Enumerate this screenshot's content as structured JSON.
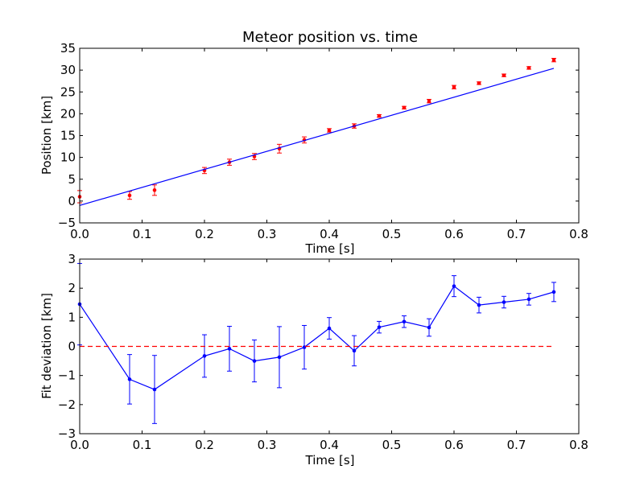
{
  "chart_data": [
    {
      "type": "scatter",
      "title": "Meteor position vs. time",
      "xlabel": "Time [s]",
      "ylabel": "Position [km]",
      "xlim": [
        0.0,
        0.8
      ],
      "ylim": [
        -5,
        35
      ],
      "x_ticks": [
        "0.0",
        "0.1",
        "0.2",
        "0.3",
        "0.4",
        "0.5",
        "0.6",
        "0.7",
        "0.8"
      ],
      "y_ticks": [
        "−5",
        "0",
        "5",
        "10",
        "15",
        "20",
        "25",
        "30",
        "35"
      ],
      "grid": false,
      "series": [
        {
          "kind": "errorbar-points",
          "color": "#ff0000",
          "x": [
            0.0,
            0.08,
            0.12,
            0.2,
            0.24,
            0.28,
            0.32,
            0.36,
            0.4,
            0.44,
            0.48,
            0.52,
            0.56,
            0.6,
            0.64,
            0.68,
            0.72,
            0.76
          ],
          "y": [
            1.0,
            1.3,
            2.5,
            7.0,
            8.9,
            10.2,
            12.0,
            14.0,
            16.2,
            17.2,
            19.5,
            21.4,
            22.9,
            26.1,
            27.0,
            28.8,
            30.5,
            32.3
          ],
          "yerr": [
            1.4,
            0.9,
            1.2,
            0.7,
            0.7,
            0.7,
            1.0,
            0.7,
            0.4,
            0.5,
            0.3,
            0.3,
            0.4,
            0.4,
            0.3,
            0.3,
            0.3,
            0.4
          ]
        },
        {
          "kind": "fit-line",
          "color": "#0000ff",
          "x": [
            0.0,
            0.76
          ],
          "y": [
            -1.0,
            30.4
          ]
        }
      ]
    },
    {
      "type": "line",
      "title": "",
      "xlabel": "Time [s]",
      "ylabel": "Fit deviation [km]",
      "xlim": [
        0.0,
        0.8
      ],
      "ylim": [
        -3,
        3
      ],
      "x_ticks": [
        "0.0",
        "0.1",
        "0.2",
        "0.3",
        "0.4",
        "0.5",
        "0.6",
        "0.7",
        "0.8"
      ],
      "y_ticks": [
        "−3",
        "−2",
        "−1",
        "0",
        "1",
        "2",
        "3"
      ],
      "grid": false,
      "series": [
        {
          "kind": "errorbar-line",
          "color": "#0000ff",
          "x": [
            0.0,
            0.08,
            0.12,
            0.2,
            0.24,
            0.28,
            0.32,
            0.36,
            0.4,
            0.44,
            0.48,
            0.52,
            0.56,
            0.6,
            0.64,
            0.68,
            0.72,
            0.76
          ],
          "y": [
            1.45,
            -1.13,
            -1.48,
            -0.33,
            -0.08,
            -0.5,
            -0.37,
            -0.03,
            0.62,
            -0.15,
            0.66,
            0.85,
            0.65,
            2.07,
            1.42,
            1.52,
            1.62,
            1.87
          ],
          "yerr": [
            1.4,
            0.85,
            1.17,
            0.73,
            0.77,
            0.72,
            1.05,
            0.75,
            0.37,
            0.52,
            0.2,
            0.2,
            0.3,
            0.36,
            0.27,
            0.2,
            0.2,
            0.33
          ]
        },
        {
          "kind": "reference-line",
          "style": "dashed",
          "color": "#ff0000",
          "x": [
            0.0,
            0.76
          ],
          "y": [
            0.0,
            0.0
          ]
        }
      ]
    }
  ]
}
